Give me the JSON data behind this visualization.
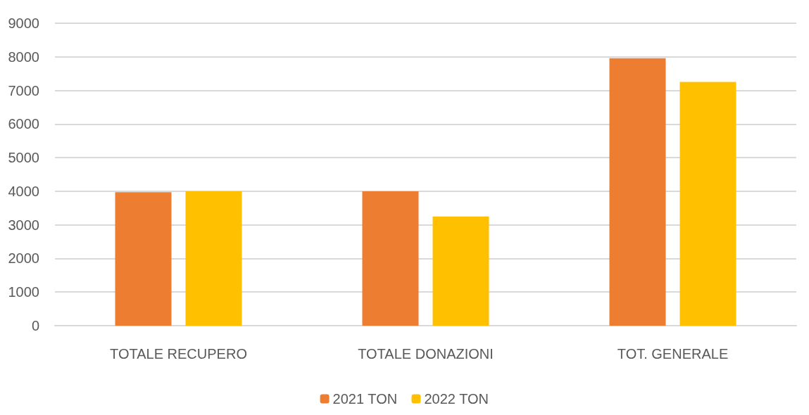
{
  "chart_data": {
    "type": "bar",
    "categories": [
      "TOTALE RECUPERO",
      "TOTALE DONAZIONI",
      "TOT. GENERALE"
    ],
    "series": [
      {
        "name": "2021 TON",
        "color": "#ed7d31",
        "values": [
          3970,
          4000,
          7960
        ]
      },
      {
        "name": "2022 TON",
        "color": "#ffc000",
        "values": [
          4000,
          3250,
          7250
        ]
      }
    ],
    "ylim": [
      0,
      9000
    ],
    "yticks": [
      0,
      1000,
      2000,
      3000,
      4000,
      5000,
      6000,
      7000,
      8000,
      9000
    ],
    "grid": "y",
    "legend": "bottom"
  }
}
